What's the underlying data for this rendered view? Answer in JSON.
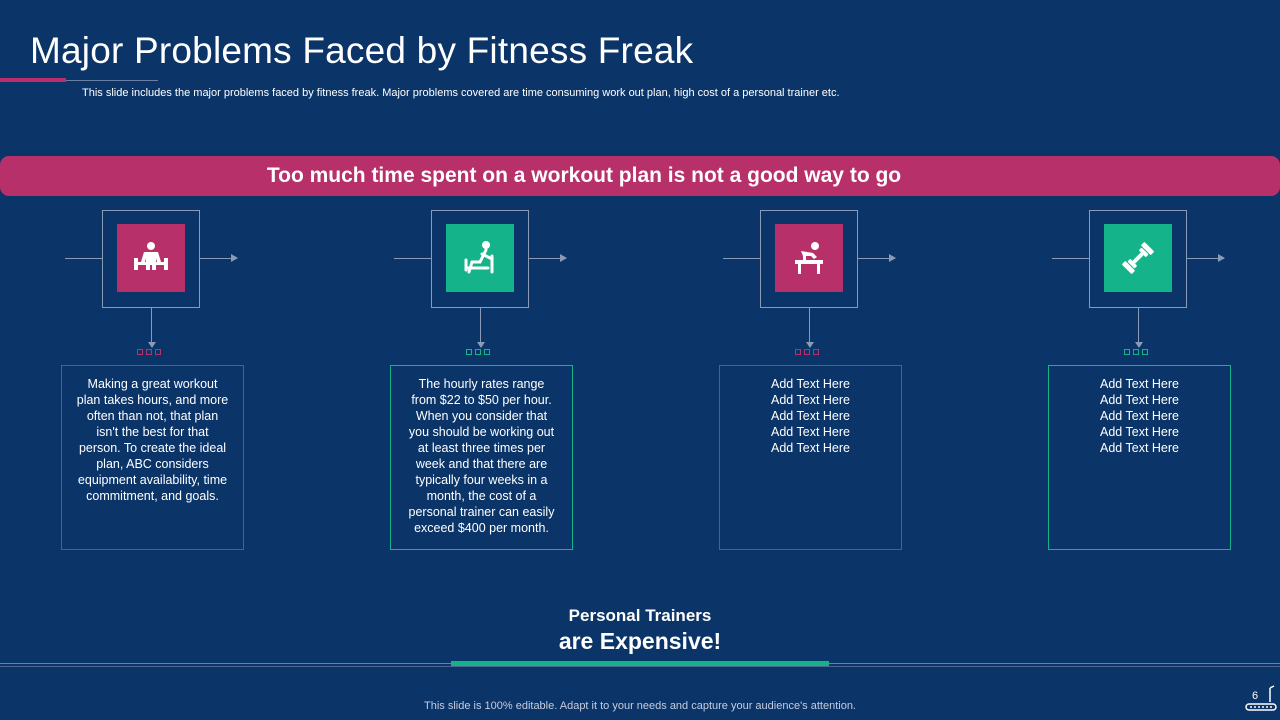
{
  "slide": {
    "title": "Major Problems Faced by Fitness Freak",
    "subtitle": "This slide includes the major problems faced by fitness freak. Major problems covered are time consuming work out plan, high cost of a personal trainer etc.",
    "banner": "Too much time spent on a workout plan is not a good way to go",
    "columns": [
      {
        "icon": "weightlifter-icon",
        "color": "#b8306a",
        "text": "Making a great workout plan takes hours, and more often than not, that plan isn't the best for that person. To create the ideal plan, ABC considers equipment availability, time commitment, and goals."
      },
      {
        "icon": "bench-press-icon",
        "color": "#14b38a",
        "text": "The hourly rates range from $22 to $50 per hour. When you consider that you should be working out at least three times per week and that there are typically four weeks in a month, the cost of a personal trainer can easily exceed $400 per month."
      },
      {
        "icon": "dumbbell-bench-icon",
        "color": "#b8306a",
        "text": "Add Text Here\nAdd Text Here\nAdd Text Here\nAdd Text Here\nAdd Text Here"
      },
      {
        "icon": "dumbbell-icon",
        "color": "#14b38a",
        "text": "Add Text Here\nAdd Text Here\nAdd Text Here\nAdd Text Here\nAdd Text Here"
      }
    ],
    "footer_small": "Personal Trainers",
    "footer_big": "are Expensive!",
    "note": "This slide is 100% editable. Adapt it to your needs and capture your audience's attention.",
    "page_number": "6"
  }
}
